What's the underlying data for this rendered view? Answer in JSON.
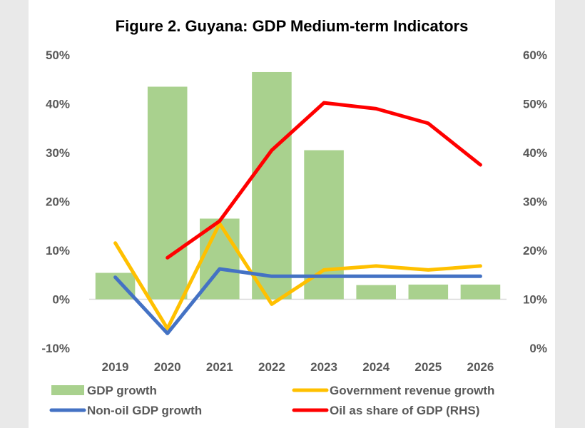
{
  "chart_data": {
    "type": "bar",
    "title": "Figure 2. Guyana: GDP Medium-term Indicators",
    "categories": [
      "2019",
      "2020",
      "2021",
      "2022",
      "2023",
      "2024",
      "2025",
      "2026"
    ],
    "left_axis": {
      "ylim": [
        -10,
        50
      ],
      "ticks": [
        "-10%",
        "0%",
        "10%",
        "20%",
        "30%",
        "40%",
        "50%"
      ],
      "tick_values": [
        -10,
        0,
        10,
        20,
        30,
        40,
        50
      ]
    },
    "right_axis": {
      "ylim": [
        0,
        60
      ],
      "ticks": [
        "0%",
        "10%",
        "20%",
        "30%",
        "40%",
        "50%",
        "60%"
      ],
      "tick_values": [
        0,
        10,
        20,
        30,
        40,
        50,
        60
      ]
    },
    "series": [
      {
        "name": "GDP growth",
        "type": "bar",
        "axis": "left",
        "color": "#a9d18e",
        "values": [
          5.4,
          43.5,
          16.5,
          46.5,
          30.5,
          2.9,
          3.0,
          3.0
        ]
      },
      {
        "name": "Government revenue growth",
        "type": "line",
        "axis": "left",
        "color": "#ffc000",
        "values": [
          11.5,
          -6.0,
          15.5,
          -1.0,
          6.0,
          6.8,
          6.0,
          6.8
        ]
      },
      {
        "name": "Non-oil GDP growth",
        "type": "line",
        "axis": "left",
        "color": "#4472c4",
        "values": [
          4.5,
          -7.0,
          6.2,
          4.7,
          4.7,
          4.7,
          4.7,
          4.7
        ]
      },
      {
        "name": "Oil as share of GDP (RHS)",
        "type": "line",
        "axis": "right",
        "color": "#ff0000",
        "values": [
          null,
          18.5,
          26.0,
          40.5,
          50.2,
          49.0,
          46.0,
          37.5
        ]
      }
    ],
    "legend_position": "bottom"
  }
}
